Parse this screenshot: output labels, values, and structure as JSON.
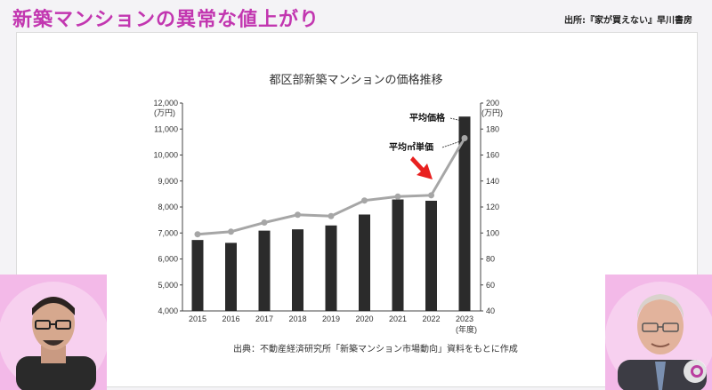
{
  "header": {
    "title": "新築マンションの異常な値上がり",
    "source": "出所:『家が買えない』早川書房"
  },
  "footnote": "出典：不動産経済研究所「新築マンション市場動向」資料をもとに作成",
  "chart_data": {
    "type": "bar+line",
    "title": "都区部新築マンションの価格推移",
    "categories": [
      "2015",
      "2016",
      "2017",
      "2018",
      "2019",
      "2020",
      "2021",
      "2022",
      "2023"
    ],
    "x_unit": "(年度)",
    "y_left": {
      "unit": "(万円)",
      "range": [
        4000,
        12000
      ],
      "ticks": [
        "4,000",
        "5,000",
        "6,000",
        "7,000",
        "8,000",
        "9,000",
        "10,000",
        "11,000",
        "12,000"
      ]
    },
    "y_right": {
      "unit": "(万円)",
      "range": [
        40,
        200
      ],
      "ticks": [
        "40",
        "60",
        "80",
        "100",
        "120",
        "140",
        "160",
        "180",
        "200"
      ]
    },
    "series": [
      {
        "name": "平均価格",
        "type": "bar",
        "axis": "left",
        "color": "#2b2b2b",
        "values": [
          6730,
          6620,
          7090,
          7140,
          7290,
          7710,
          8290,
          8240,
          11480
        ]
      },
      {
        "name": "平均㎡単価",
        "type": "line",
        "axis": "right",
        "color": "#a6a6a6",
        "values": [
          99,
          101,
          108,
          114,
          113,
          125,
          128,
          129,
          173
        ]
      }
    ],
    "annotation_arrow_color": "#e8201f",
    "grid": false
  },
  "colors": {
    "title": "#c236b0",
    "background_pink": "#f3b9e8"
  }
}
